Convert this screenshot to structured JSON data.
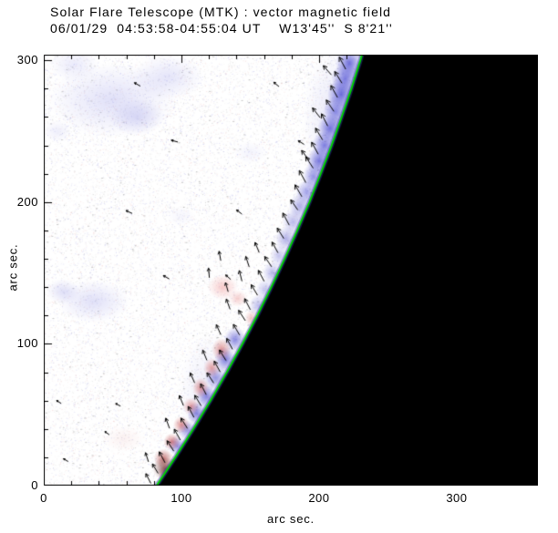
{
  "title": {
    "line1": "Solar Flare Telescope (MTK) : vector magnetic field",
    "line2": "06/01/29  04:53:58-04:55:04 UT    W13'45''  S 8'21''"
  },
  "chart_data": {
    "type": "heatmap",
    "title": "Solar Flare Telescope (MTK) : vector magnetic field",
    "subtitle": "06/01/29  04:53:58-04:55:04 UT    W13'45''  S 8'21''",
    "xlabel": "arc sec.",
    "ylabel": "arc sec.",
    "xlim": [
      0,
      359
    ],
    "ylim": [
      0,
      304
    ],
    "xticks": [
      0,
      100,
      200,
      300
    ],
    "yticks": [
      0,
      100,
      200,
      300
    ],
    "minor_tick_step": 20,
    "legend": "none",
    "colors": {
      "background": "#ffffff",
      "off_limb": "#000000",
      "limb_line": "#00d200",
      "limb_glow": "rgba(48,48,168,0.45)",
      "frame": "#000000",
      "arrow": "#000000",
      "noise_gray": "120,120,120",
      "noise_blue": "80,80,205",
      "noise_red": "205,80,80"
    },
    "noise": {
      "seed": 7,
      "count": 32000
    },
    "limb": [
      [
        82,
        0
      ],
      [
        95.6,
        20
      ],
      [
        108.7,
        40
      ],
      [
        121.1,
        60
      ],
      [
        133,
        80
      ],
      [
        144.3,
        100
      ],
      [
        155.1,
        120
      ],
      [
        165.3,
        140
      ],
      [
        175,
        160
      ],
      [
        184.2,
        180
      ],
      [
        193,
        200
      ],
      [
        201.2,
        220
      ],
      [
        209.1,
        240
      ],
      [
        216.4,
        260
      ],
      [
        223.5,
        280
      ],
      [
        230,
        300
      ],
      [
        231.2,
        304
      ]
    ],
    "diffuse_patches": [
      [
        50,
        272,
        46,
        26,
        "#9898e8",
        0.3
      ],
      [
        90,
        288,
        26,
        16,
        "#9898e8",
        0.26
      ],
      [
        22,
        297,
        18,
        12,
        "#a2a2ec",
        0.22
      ],
      [
        68,
        260,
        20,
        13,
        "#8c8ce2",
        0.28
      ],
      [
        36,
        130,
        26,
        15,
        "#9898e8",
        0.3
      ],
      [
        14,
        137,
        12,
        9,
        "#8c8ce2",
        0.28
      ],
      [
        10,
        250,
        10,
        8,
        "#a2a2ec",
        0.18
      ],
      [
        130,
        140,
        11,
        9,
        "#f09898",
        0.5
      ],
      [
        141,
        132,
        7,
        6,
        "#e88888",
        0.4
      ],
      [
        58,
        33,
        15,
        9,
        "#eec0c0",
        0.22
      ],
      [
        150,
        235,
        12,
        8,
        "#b0b0ee",
        0.15
      ],
      [
        100,
        190,
        10,
        7,
        "#b0b0ee",
        0.12
      ]
    ],
    "limb_blobs": [
      [
        214,
        258,
        26,
        52,
        "#8080dd",
        0.22
      ],
      [
        196,
        180,
        20,
        40,
        "#9090e0",
        0.16
      ],
      [
        120,
        62,
        22,
        46,
        "#9090e0",
        0.18
      ],
      [
        222,
        298,
        10,
        11,
        "#3434cc",
        0.7
      ],
      [
        219,
        287,
        10,
        11,
        "#3c3cd0",
        0.66
      ],
      [
        216,
        276,
        10,
        11,
        "#3434cc",
        0.7
      ],
      [
        212,
        264,
        9,
        11,
        "#4444d2",
        0.6
      ],
      [
        208,
        252,
        9,
        10,
        "#3434cc",
        0.66
      ],
      [
        204,
        240,
        9,
        10,
        "#3c3cd0",
        0.64
      ],
      [
        200,
        229,
        9,
        10,
        "#3434cc",
        0.66
      ],
      [
        196,
        218,
        8,
        10,
        "#4242d0",
        0.58
      ],
      [
        191,
        207,
        8,
        9,
        "#4c4cd6",
        0.5
      ],
      [
        186,
        197,
        8,
        9,
        "#5656cc",
        0.46
      ],
      [
        181,
        186,
        8,
        9,
        "#6262d2",
        0.42
      ],
      [
        176,
        174,
        8,
        9,
        "#5656cc",
        0.46
      ],
      [
        171,
        162,
        7,
        8,
        "#6666d4",
        0.38
      ],
      [
        166,
        150,
        7,
        8,
        "#5656cc",
        0.42
      ],
      [
        161,
        138,
        7,
        8,
        "#6262d2",
        0.38
      ],
      [
        156,
        127,
        7,
        8,
        "#5656cc",
        0.4
      ],
      [
        168,
        128,
        6,
        7,
        "#cc4848",
        0.42
      ],
      [
        151,
        118,
        5,
        6,
        "#d25858",
        0.36
      ],
      [
        139,
        103,
        8,
        9,
        "#3a3acc",
        0.58
      ],
      [
        132,
        89,
        8,
        9,
        "#3434c8",
        0.62
      ],
      [
        125,
        76,
        8,
        8,
        "#4444cc",
        0.52
      ],
      [
        118,
        63,
        7,
        8,
        "#3a3acc",
        0.58
      ],
      [
        111,
        51,
        7,
        8,
        "#3434c8",
        0.58
      ],
      [
        104,
        39,
        7,
        7,
        "#4444cc",
        0.52
      ],
      [
        97,
        28,
        7,
        7,
        "#3a3acc",
        0.52
      ],
      [
        129,
        96,
        7,
        8,
        "#c23a3a",
        0.52
      ],
      [
        122,
        83,
        6,
        7,
        "#ca4242",
        0.48
      ],
      [
        114,
        69,
        6,
        7,
        "#c23a3a",
        0.52
      ],
      [
        107,
        56,
        6,
        6,
        "#ca4242",
        0.48
      ],
      [
        100,
        43,
        6,
        6,
        "#c23232",
        0.52
      ],
      [
        93,
        31,
        6,
        6,
        "#ba2a2a",
        0.55
      ],
      [
        87,
        19,
        7,
        7,
        "#a22222",
        0.6
      ],
      [
        91,
        9,
        8,
        6,
        "#821a1a",
        0.65
      ],
      [
        99,
        15,
        6,
        5,
        "#922222",
        0.55
      ],
      [
        88,
        12,
        9,
        8,
        "#551010",
        0.6
      ],
      [
        96,
        4,
        10,
        5,
        "#601212",
        0.7
      ]
    ],
    "arrows": [
      [
        217,
        298,
        118,
        10
      ],
      [
        214,
        288,
        122,
        10
      ],
      [
        211,
        278,
        119,
        10
      ],
      [
        208,
        268,
        124,
        10
      ],
      [
        204,
        258,
        117,
        10
      ],
      [
        200,
        248,
        121,
        10
      ],
      [
        197,
        238,
        119,
        10
      ],
      [
        193,
        228,
        123,
        10
      ],
      [
        188,
        218,
        118,
        10
      ],
      [
        206,
        293,
        131,
        9
      ],
      [
        198,
        263,
        128,
        9
      ],
      [
        190,
        233,
        127,
        9
      ],
      [
        185,
        208,
        120,
        10
      ],
      [
        182,
        198,
        125,
        9
      ],
      [
        176,
        188,
        118,
        10
      ],
      [
        172,
        178,
        122,
        9
      ],
      [
        168,
        168,
        119,
        9
      ],
      [
        155,
        168,
        112,
        8
      ],
      [
        163,
        158,
        124,
        9
      ],
      [
        148,
        158,
        108,
        8
      ],
      [
        158,
        148,
        118,
        9
      ],
      [
        143,
        148,
        104,
        8
      ],
      [
        153,
        138,
        121,
        9
      ],
      [
        134,
        128,
        110,
        8
      ],
      [
        148,
        128,
        117,
        9
      ],
      [
        144,
        120,
        123,
        9
      ],
      [
        128,
        162,
        100,
        7
      ],
      [
        120,
        150,
        95,
        7
      ],
      [
        133,
        140,
        106,
        7
      ],
      [
        140,
        110,
        120,
        9
      ],
      [
        127,
        110,
        114,
        8
      ],
      [
        135,
        100,
        118,
        9
      ],
      [
        130,
        92,
        122,
        9
      ],
      [
        117,
        92,
        112,
        8
      ],
      [
        126,
        84,
        119,
        9
      ],
      [
        121,
        76,
        123,
        9
      ],
      [
        108,
        76,
        114,
        8
      ],
      [
        116,
        68,
        117,
        9
      ],
      [
        112,
        60,
        121,
        9
      ],
      [
        100,
        60,
        112,
        8
      ],
      [
        107,
        52,
        118,
        9
      ],
      [
        102,
        44,
        122,
        9
      ],
      [
        90,
        44,
        110,
        8
      ],
      [
        97,
        36,
        119,
        9
      ],
      [
        92,
        28,
        123,
        9
      ],
      [
        86,
        20,
        118,
        9
      ],
      [
        75,
        20,
        108,
        7
      ],
      [
        81,
        12,
        121,
        8
      ],
      [
        76,
        5,
        117,
        8
      ],
      [
        68,
        283,
        150,
        5
      ],
      [
        169,
        283,
        140,
        5
      ],
      [
        95,
        243,
        165,
        5
      ],
      [
        187,
        242,
        148,
        5
      ],
      [
        62,
        193,
        155,
        5
      ],
      [
        142,
        193,
        142,
        5
      ],
      [
        89,
        147,
        150,
        5
      ],
      [
        134,
        147,
        138,
        5
      ],
      [
        11,
        59,
        148,
        4
      ],
      [
        54,
        57,
        152,
        4
      ],
      [
        46,
        37,
        144,
        4
      ],
      [
        16,
        18,
        150,
        4
      ]
    ]
  }
}
